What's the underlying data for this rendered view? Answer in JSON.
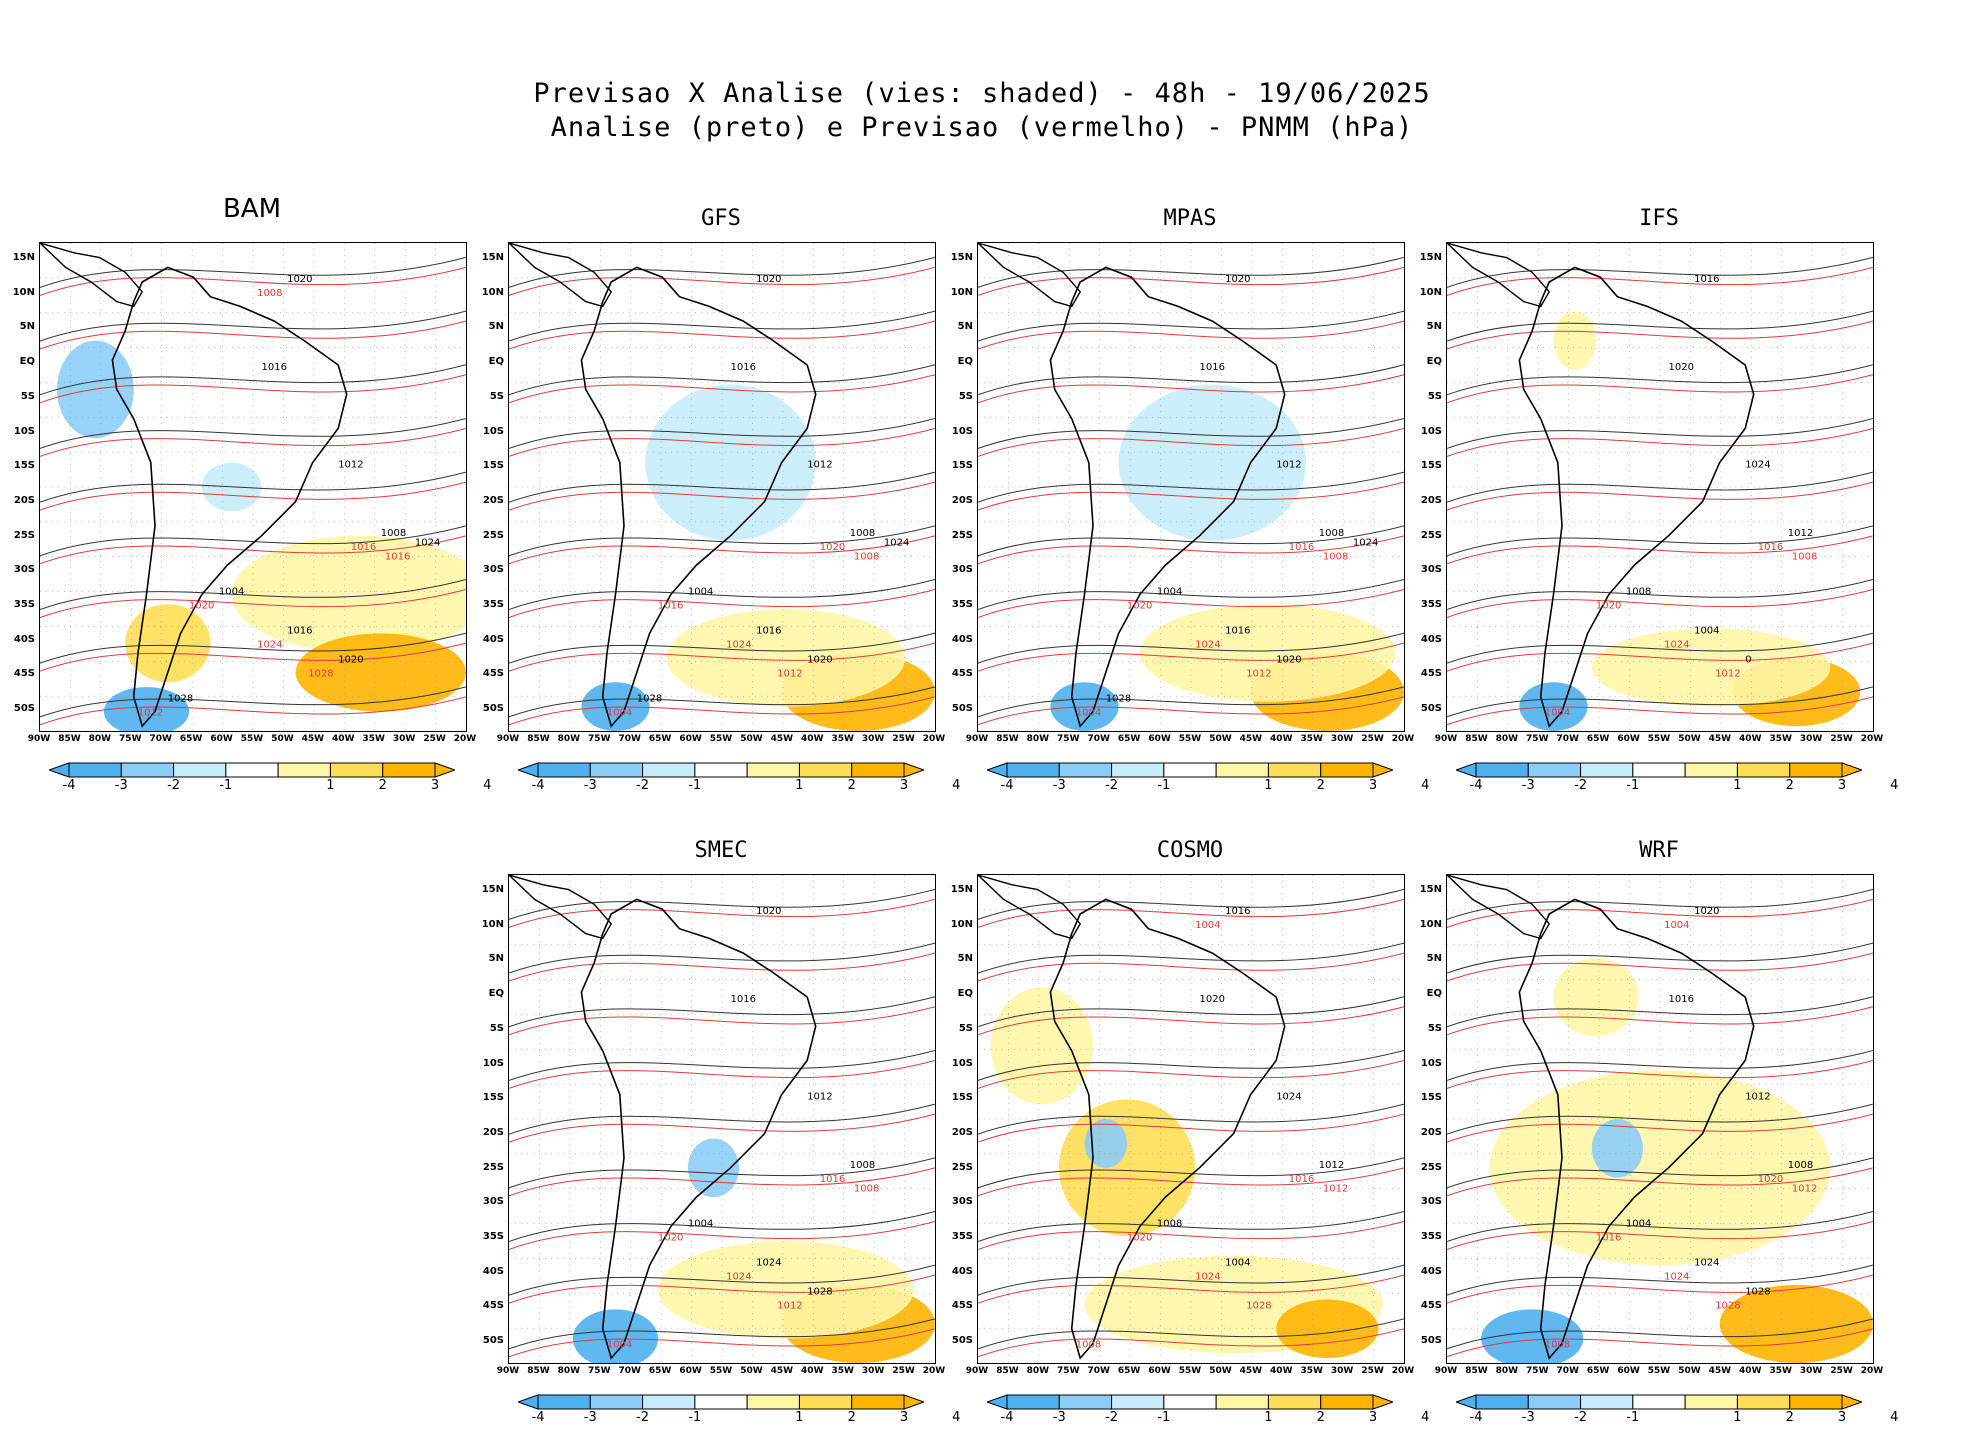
{
  "title": {
    "line1": "Previsao X Analise (vies: shaded) - 48h - 19/06/2025",
    "line2": "Analise (preto) e Previsao (vermelho) - PNMM (hPa)"
  },
  "lat_labels": [
    "15N",
    "10N",
    "5N",
    "EQ",
    "5S",
    "10S",
    "15S",
    "20S",
    "25S",
    "30S",
    "35S",
    "40S",
    "45S",
    "50S"
  ],
  "lon_labels": [
    "90W",
    "85W",
    "80W",
    "75W",
    "70W",
    "65W",
    "60W",
    "55W",
    "50W",
    "45W",
    "40W",
    "35W",
    "30W",
    "25W",
    "20W"
  ],
  "colorbar": {
    "labels": [
      "-4",
      "-3",
      "-2",
      "-1",
      "1",
      "2",
      "3",
      "4"
    ],
    "colors": [
      "#4fb0f0",
      "#8ccdf7",
      "#c6ecfb",
      "#ffffff",
      "#fff6a6",
      "#ffde55",
      "#ffb400"
    ]
  },
  "panels": [
    {
      "name": "BAM",
      "contours_black": [
        "1020",
        "1016",
        "1012",
        "1008",
        "1004",
        "1016",
        "1020",
        "1024",
        "1028"
      ],
      "contours_red": [
        "1016",
        "1020",
        "1024",
        "1028",
        "1016",
        "1012",
        "1008"
      ]
    },
    {
      "name": "GFS",
      "contours_black": [
        "1020",
        "1016",
        "1012",
        "1008",
        "1004",
        "1016",
        "1020",
        "1024",
        "1028"
      ],
      "contours_red": [
        "1020",
        "1016",
        "1024",
        "1012",
        "1008",
        "1004"
      ]
    },
    {
      "name": "MPAS",
      "contours_black": [
        "1020",
        "1016",
        "1012",
        "1008",
        "1004",
        "1016",
        "1020",
        "1024",
        "1028"
      ],
      "contours_red": [
        "1016",
        "1020",
        "1024",
        "1012",
        "1008",
        "1004"
      ]
    },
    {
      "name": "IFS",
      "contours_black": [
        "1016",
        "1020",
        "1024",
        "1012",
        "1008",
        "1004",
        "0"
      ],
      "contours_red": [
        "1016",
        "1020",
        "1024",
        "1012",
        "1008",
        "1004"
      ]
    },
    {
      "name": "SMEC",
      "contours_black": [
        "1020",
        "1016",
        "1012",
        "1008",
        "1004",
        "1024",
        "1028"
      ],
      "contours_red": [
        "1016",
        "1020",
        "1024",
        "1012",
        "1008",
        "1004"
      ]
    },
    {
      "name": "COSMO",
      "contours_black": [
        "1016",
        "1020",
        "1024",
        "1012",
        "1008",
        "1004"
      ],
      "contours_red": [
        "1016",
        "1020",
        "1024",
        "1028",
        "1012",
        "1008",
        "1004"
      ]
    },
    {
      "name": "WRF",
      "contours_black": [
        "1020",
        "1016",
        "1012",
        "1008",
        "1004",
        "1024",
        "1028"
      ],
      "contours_red": [
        "1020",
        "1016",
        "1024",
        "1028",
        "1012",
        "1008",
        "1004"
      ]
    }
  ]
}
